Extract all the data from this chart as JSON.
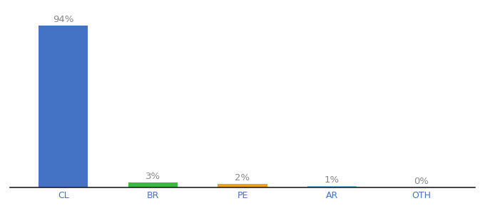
{
  "categories": [
    "CL",
    "BR",
    "PE",
    "AR",
    "OTH"
  ],
  "values": [
    94,
    3,
    2,
    1,
    0
  ],
  "bar_colors": [
    "#4472c4",
    "#3db843",
    "#f0a020",
    "#7ec8e3",
    "#4472c4"
  ],
  "label_color": "#888888",
  "tick_label_color": "#4472c4",
  "ylim": [
    0,
    100
  ],
  "background_color": "#ffffff",
  "bar_label_fontsize": 9.5,
  "xlabel_fontsize": 9,
  "bar_width": 0.55
}
